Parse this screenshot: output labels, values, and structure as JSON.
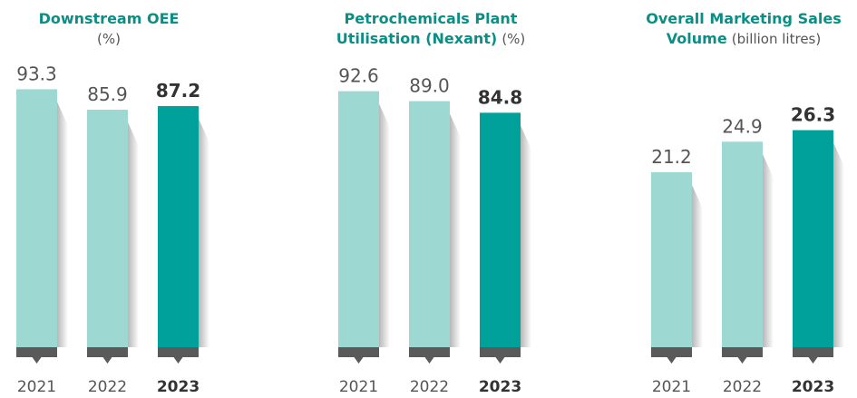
{
  "chart_data": [
    {
      "type": "bar",
      "title": "Downstream OEE",
      "unit": "(%)",
      "categories": [
        "2021",
        "2022",
        "2023"
      ],
      "values": [
        93.3,
        85.9,
        87.2
      ],
      "value_labels": [
        "93.3",
        "85.9",
        "87.2"
      ],
      "highlight": "2023",
      "ylim": [
        0,
        100
      ]
    },
    {
      "type": "bar",
      "title": "Petrochemicals Plant Utilisation (Nexant)",
      "title_line1": "Petrochemicals Plant",
      "title_line2": "Utilisation (Nexant)",
      "unit": "(%)",
      "categories": [
        "2021",
        "2022",
        "2023"
      ],
      "values": [
        92.6,
        89.0,
        84.8
      ],
      "value_labels": [
        "92.6",
        "89.0",
        "84.8"
      ],
      "highlight": "2023",
      "ylim": [
        0,
        100
      ]
    },
    {
      "type": "bar",
      "title": "Overall Marketing Sales Volume",
      "title_line1": "Overall Marketing Sales",
      "title_line2": "Volume",
      "unit": "(billion litres)",
      "categories": [
        "2021",
        "2022",
        "2023"
      ],
      "values": [
        21.2,
        24.9,
        26.3
      ],
      "value_labels": [
        "21.2",
        "24.9",
        "26.3"
      ],
      "highlight": "2023",
      "ylim": [
        0,
        33.5
      ]
    }
  ],
  "colors": {
    "bar_light": "#9ed8d2",
    "bar_dark": "#00a19a",
    "base": "#5a5a5a",
    "title": "#0a8f86"
  }
}
